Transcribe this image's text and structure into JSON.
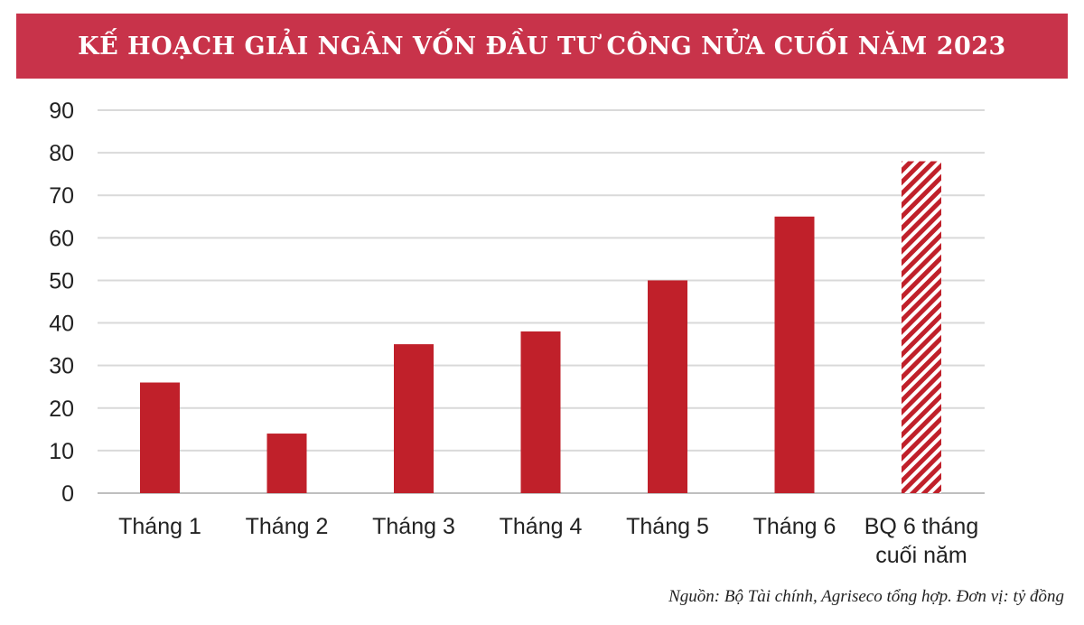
{
  "chart_data": {
    "type": "bar",
    "title": "KẾ HOẠCH GIẢI NGÂN VỐN ĐẦU TƯ CÔNG NỬA CUỐI NĂM 2023",
    "categories": [
      "Tháng 1",
      "Tháng 2",
      "Tháng 3",
      "Tháng 4",
      "Tháng 5",
      "Tháng 6",
      "BQ 6 tháng cuối năm"
    ],
    "category_lines": [
      [
        "Tháng 1"
      ],
      [
        "Tháng 2"
      ],
      [
        "Tháng 3"
      ],
      [
        "Tháng 4"
      ],
      [
        "Tháng 5"
      ],
      [
        "Tháng 6"
      ],
      [
        "BQ 6 tháng",
        "cuối năm"
      ]
    ],
    "values": [
      26,
      14,
      35,
      38,
      50,
      65,
      78
    ],
    "hatched": [
      false,
      false,
      false,
      false,
      false,
      false,
      true
    ],
    "ylim": [
      0,
      90
    ],
    "yticks": [
      0,
      10,
      20,
      30,
      40,
      50,
      60,
      70,
      80,
      90
    ],
    "xlabel": "",
    "ylabel": "",
    "grid": true,
    "colors": {
      "bar": "#c0202a",
      "banner": "#c8334a",
      "grid": "#d9d9d9"
    }
  },
  "source": "Nguồn: Bộ Tài chính, Agriseco tổng hợp. Đơn vị: tỷ đồng"
}
